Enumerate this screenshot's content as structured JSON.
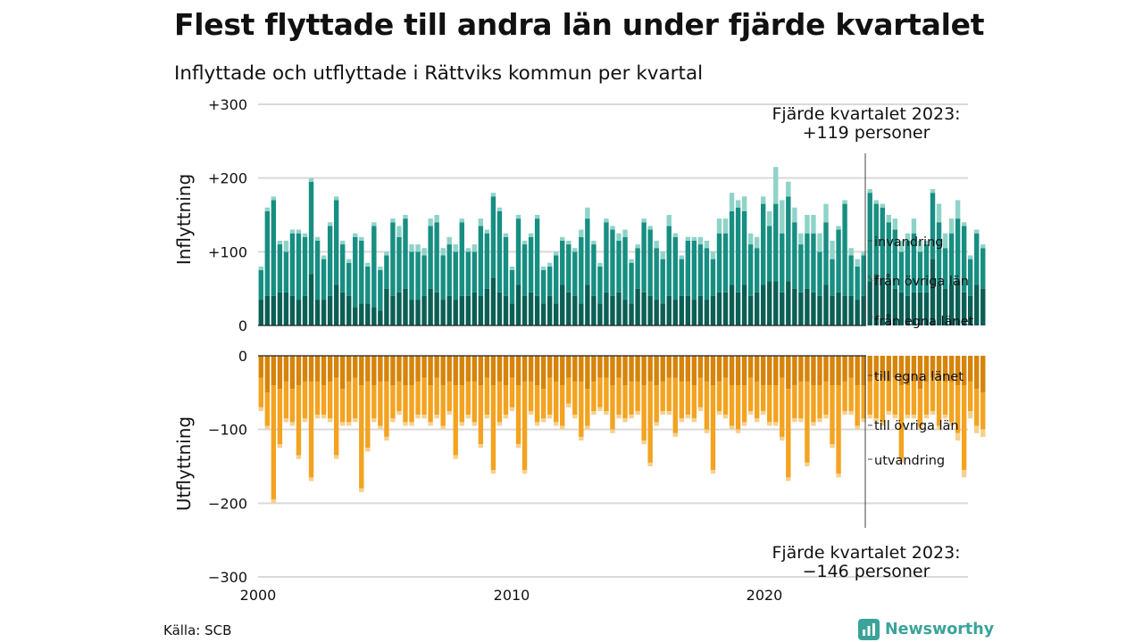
{
  "title": "Flest flyttade till andra län under fjärde kvartalet",
  "subtitle": "Inflyttade och utflyttade i Rättviks kommun per kvartal",
  "source": "Källa: SCB",
  "brand": "Newsworthy",
  "colors": {
    "in_egna": "#0b5f55",
    "in_ovriga": "#178e82",
    "in_invandring": "#8fd3c8",
    "ut_egna": "#d6840a",
    "ut_ovriga": "#f3a320",
    "ut_utvandring": "#f6d08f",
    "grid": "#d9d9d9",
    "brand": "#3aa39a"
  },
  "chart_data": {
    "type": "bar",
    "stacked": true,
    "x_ticks": [
      "2000",
      "2010",
      "2020"
    ],
    "y_ticks": [
      "+300",
      "+200",
      "+100",
      "0",
      "0",
      "−100",
      "−200",
      "−300"
    ],
    "ylabel_top": "Inflyttning",
    "ylabel_bottom": "Utflyttning",
    "ylim": [
      -300,
      300
    ],
    "quarters_start": "2000Q1",
    "annotation_top_line1": "Fjärde kvartalet 2023:",
    "annotation_top_line2": "+119 personer",
    "annotation_bottom_line1": "Fjärde kvartalet 2023:",
    "annotation_bottom_line2": "−146 personer",
    "labels": {
      "in_invandring": "invandring",
      "in_ovriga": "från övriga län",
      "in_egna": "från egna länet",
      "ut_egna": "till egna länet",
      "ut_ovriga": "till övriga län",
      "ut_utvandring": "utvandring"
    },
    "inflyttning": {
      "egna": [
        35,
        40,
        40,
        45,
        45,
        40,
        35,
        40,
        70,
        35,
        35,
        40,
        55,
        45,
        40,
        25,
        30,
        30,
        25,
        20,
        50,
        40,
        45,
        50,
        35,
        35,
        40,
        50,
        45,
        35,
        40,
        35,
        40,
        40,
        45,
        40,
        50,
        65,
        45,
        40,
        30,
        55,
        40,
        45,
        40,
        30,
        40,
        30,
        55,
        45,
        40,
        30,
        55,
        40,
        30,
        45,
        40,
        45,
        35,
        30,
        50,
        45,
        40,
        35,
        30,
        40,
        35,
        40,
        40,
        35,
        40,
        35,
        40,
        45,
        45,
        55,
        45,
        55,
        40,
        45,
        55,
        60,
        60,
        45,
        60,
        50,
        45,
        50,
        45,
        40,
        55,
        40,
        45,
        40,
        40,
        35,
        40,
        60,
        70,
        65,
        55,
        50,
        45,
        40,
        45,
        45,
        45,
        90,
        55,
        50,
        55,
        60,
        45,
        40,
        55,
        50
      ],
      "ovriga": [
        40,
        115,
        130,
        65,
        55,
        85,
        90,
        80,
        125,
        80,
        55,
        95,
        115,
        65,
        45,
        95,
        85,
        50,
        110,
        55,
        45,
        100,
        75,
        95,
        65,
        65,
        55,
        85,
        95,
        60,
        70,
        65,
        100,
        60,
        55,
        95,
        75,
        110,
        110,
        80,
        45,
        90,
        70,
        75,
        105,
        45,
        40,
        65,
        60,
        65,
        60,
        90,
        90,
        70,
        50,
        95,
        90,
        70,
        85,
        55,
        55,
        95,
        90,
        70,
        60,
        95,
        85,
        50,
        75,
        80,
        70,
        70,
        50,
        80,
        80,
        100,
        115,
        100,
        70,
        60,
        110,
        75,
        105,
        80,
        115,
        90,
        65,
        75,
        80,
        60,
        85,
        50,
        85,
        125,
        55,
        45,
        55,
        120,
        95,
        95,
        85,
        80,
        55,
        75,
        80,
        55,
        65,
        90,
        85,
        55,
        70,
        85,
        90,
        50,
        70,
        55
      ],
      "invandring": [
        5,
        5,
        5,
        5,
        15,
        5,
        5,
        5,
        5,
        5,
        5,
        5,
        5,
        5,
        5,
        5,
        5,
        5,
        5,
        5,
        5,
        5,
        15,
        5,
        10,
        10,
        10,
        10,
        10,
        10,
        10,
        10,
        5,
        5,
        10,
        10,
        5,
        5,
        5,
        5,
        5,
        5,
        5,
        5,
        5,
        5,
        5,
        5,
        5,
        5,
        5,
        10,
        15,
        5,
        5,
        5,
        5,
        10,
        10,
        5,
        5,
        5,
        5,
        10,
        10,
        15,
        5,
        5,
        5,
        5,
        10,
        10,
        10,
        20,
        20,
        25,
        10,
        20,
        15,
        15,
        10,
        20,
        50,
        45,
        20,
        20,
        15,
        25,
        25,
        25,
        25,
        25,
        5,
        5,
        10,
        10,
        5,
        5,
        5,
        5,
        10,
        15,
        15,
        10,
        20,
        15,
        5,
        5,
        25,
        20,
        20,
        25,
        5,
        5,
        5,
        5
      ]
    },
    "utflyttning": {
      "egna": [
        30,
        50,
        40,
        45,
        35,
        45,
        40,
        35,
        35,
        35,
        40,
        35,
        30,
        45,
        35,
        30,
        40,
        35,
        40,
        35,
        35,
        40,
        35,
        40,
        40,
        35,
        30,
        40,
        30,
        40,
        35,
        40,
        40,
        35,
        35,
        40,
        30,
        40,
        35,
        40,
        30,
        40,
        35,
        35,
        40,
        45,
        30,
        35,
        40,
        30,
        35,
        35,
        45,
        35,
        30,
        30,
        40,
        30,
        40,
        35,
        35,
        40,
        35,
        40,
        35,
        30,
        30,
        35,
        35,
        40,
        30,
        35,
        40,
        35,
        30,
        40,
        40,
        40,
        30,
        35,
        40,
        40,
        40,
        30,
        45,
        40,
        35,
        35,
        40,
        40,
        35,
        40,
        40,
        35,
        30,
        40,
        40,
        35,
        30,
        30,
        35,
        30,
        40,
        40,
        35,
        45,
        35,
        30,
        30,
        35,
        35,
        40,
        40,
        35,
        45,
        50
      ],
      "ovriga": [
        40,
        45,
        155,
        75,
        50,
        45,
        95,
        50,
        130,
        45,
        40,
        50,
        105,
        45,
        55,
        55,
        140,
        90,
        45,
        60,
        75,
        45,
        40,
        50,
        50,
        45,
        50,
        50,
        50,
        55,
        40,
        95,
        50,
        45,
        55,
        80,
        50,
        115,
        55,
        40,
        40,
        80,
        120,
        40,
        50,
        40,
        50,
        55,
        55,
        35,
        45,
        75,
        50,
        40,
        40,
        45,
        60,
        50,
        45,
        45,
        40,
        75,
        110,
        50,
        40,
        45,
        75,
        50,
        45,
        45,
        40,
        65,
        115,
        40,
        50,
        55,
        60,
        50,
        45,
        50,
        35,
        50,
        50,
        80,
        120,
        45,
        50,
        110,
        50,
        45,
        45,
        80,
        120,
        40,
        45,
        55,
        45,
        45,
        55,
        60,
        40,
        50,
        100,
        40,
        45,
        50,
        45,
        45,
        65,
        45,
        55,
        65,
        115,
        40,
        50,
        50
      ],
      "utvandring": [
        5,
        5,
        5,
        5,
        5,
        5,
        5,
        5,
        5,
        5,
        5,
        5,
        5,
        5,
        5,
        5,
        5,
        5,
        5,
        5,
        5,
        5,
        5,
        5,
        5,
        5,
        5,
        5,
        5,
        5,
        5,
        5,
        5,
        5,
        5,
        5,
        5,
        5,
        5,
        5,
        5,
        5,
        5,
        5,
        5,
        5,
        5,
        5,
        5,
        5,
        5,
        5,
        5,
        5,
        5,
        5,
        5,
        5,
        5,
        5,
        5,
        5,
        5,
        5,
        5,
        5,
        5,
        5,
        5,
        5,
        5,
        5,
        5,
        5,
        5,
        5,
        5,
        5,
        5,
        5,
        5,
        5,
        5,
        5,
        5,
        5,
        5,
        5,
        5,
        5,
        5,
        5,
        5,
        5,
        5,
        5,
        5,
        5,
        5,
        5,
        5,
        5,
        5,
        5,
        5,
        5,
        5,
        5,
        5,
        5,
        5,
        10,
        10,
        10,
        10,
        10
      ]
    }
  }
}
